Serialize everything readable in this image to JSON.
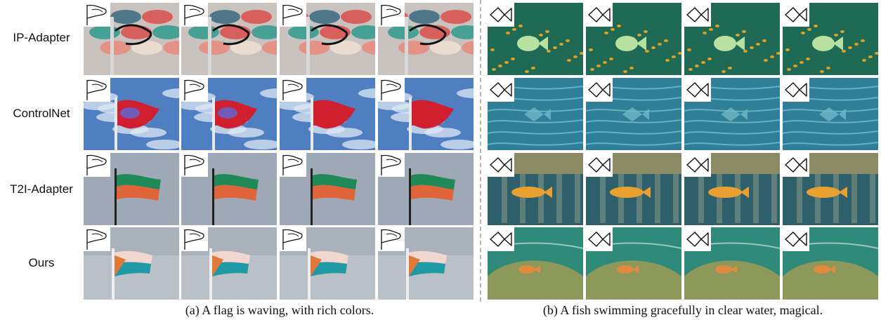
{
  "rows": [
    {
      "label": "IP-Adapter"
    },
    {
      "label": "ControlNet"
    },
    {
      "label": "T2I-Adapter"
    },
    {
      "label": "Ours"
    }
  ],
  "captions": {
    "flag": "(a) A flag is waving, with rich colors.",
    "fish": "(b) A fish swimming gracefully in clear water, magical."
  },
  "colors": {
    "ip_flag_bg": "#c9c3c0",
    "ip_flag_accent": "#d94f4a",
    "ip_flag_teal": "#2f9a8c",
    "cn_flag_sky": "#4f7fc0",
    "cn_flag_red": "#d01f2e",
    "t2i_flag_bg": "#8f9aa8",
    "t2i_flag_green": "#1f8a58",
    "t2i_flag_orange": "#e0643a",
    "ours_flag_bg": "#b9c0c8",
    "ours_flag_teal": "#1f9aa5",
    "ours_flag_orange": "#e0783a",
    "ip_fish_bg": "#1f6a55",
    "ip_fish_dots": "#e0a020",
    "cn_fish_bg": "#2f7f98",
    "t2i_fish_bg": "#2f5f6a",
    "t2i_fish_gold": "#e8a030",
    "ours_fish_bg": "#2f8a7a",
    "ours_fish_gold": "#d8a640"
  }
}
